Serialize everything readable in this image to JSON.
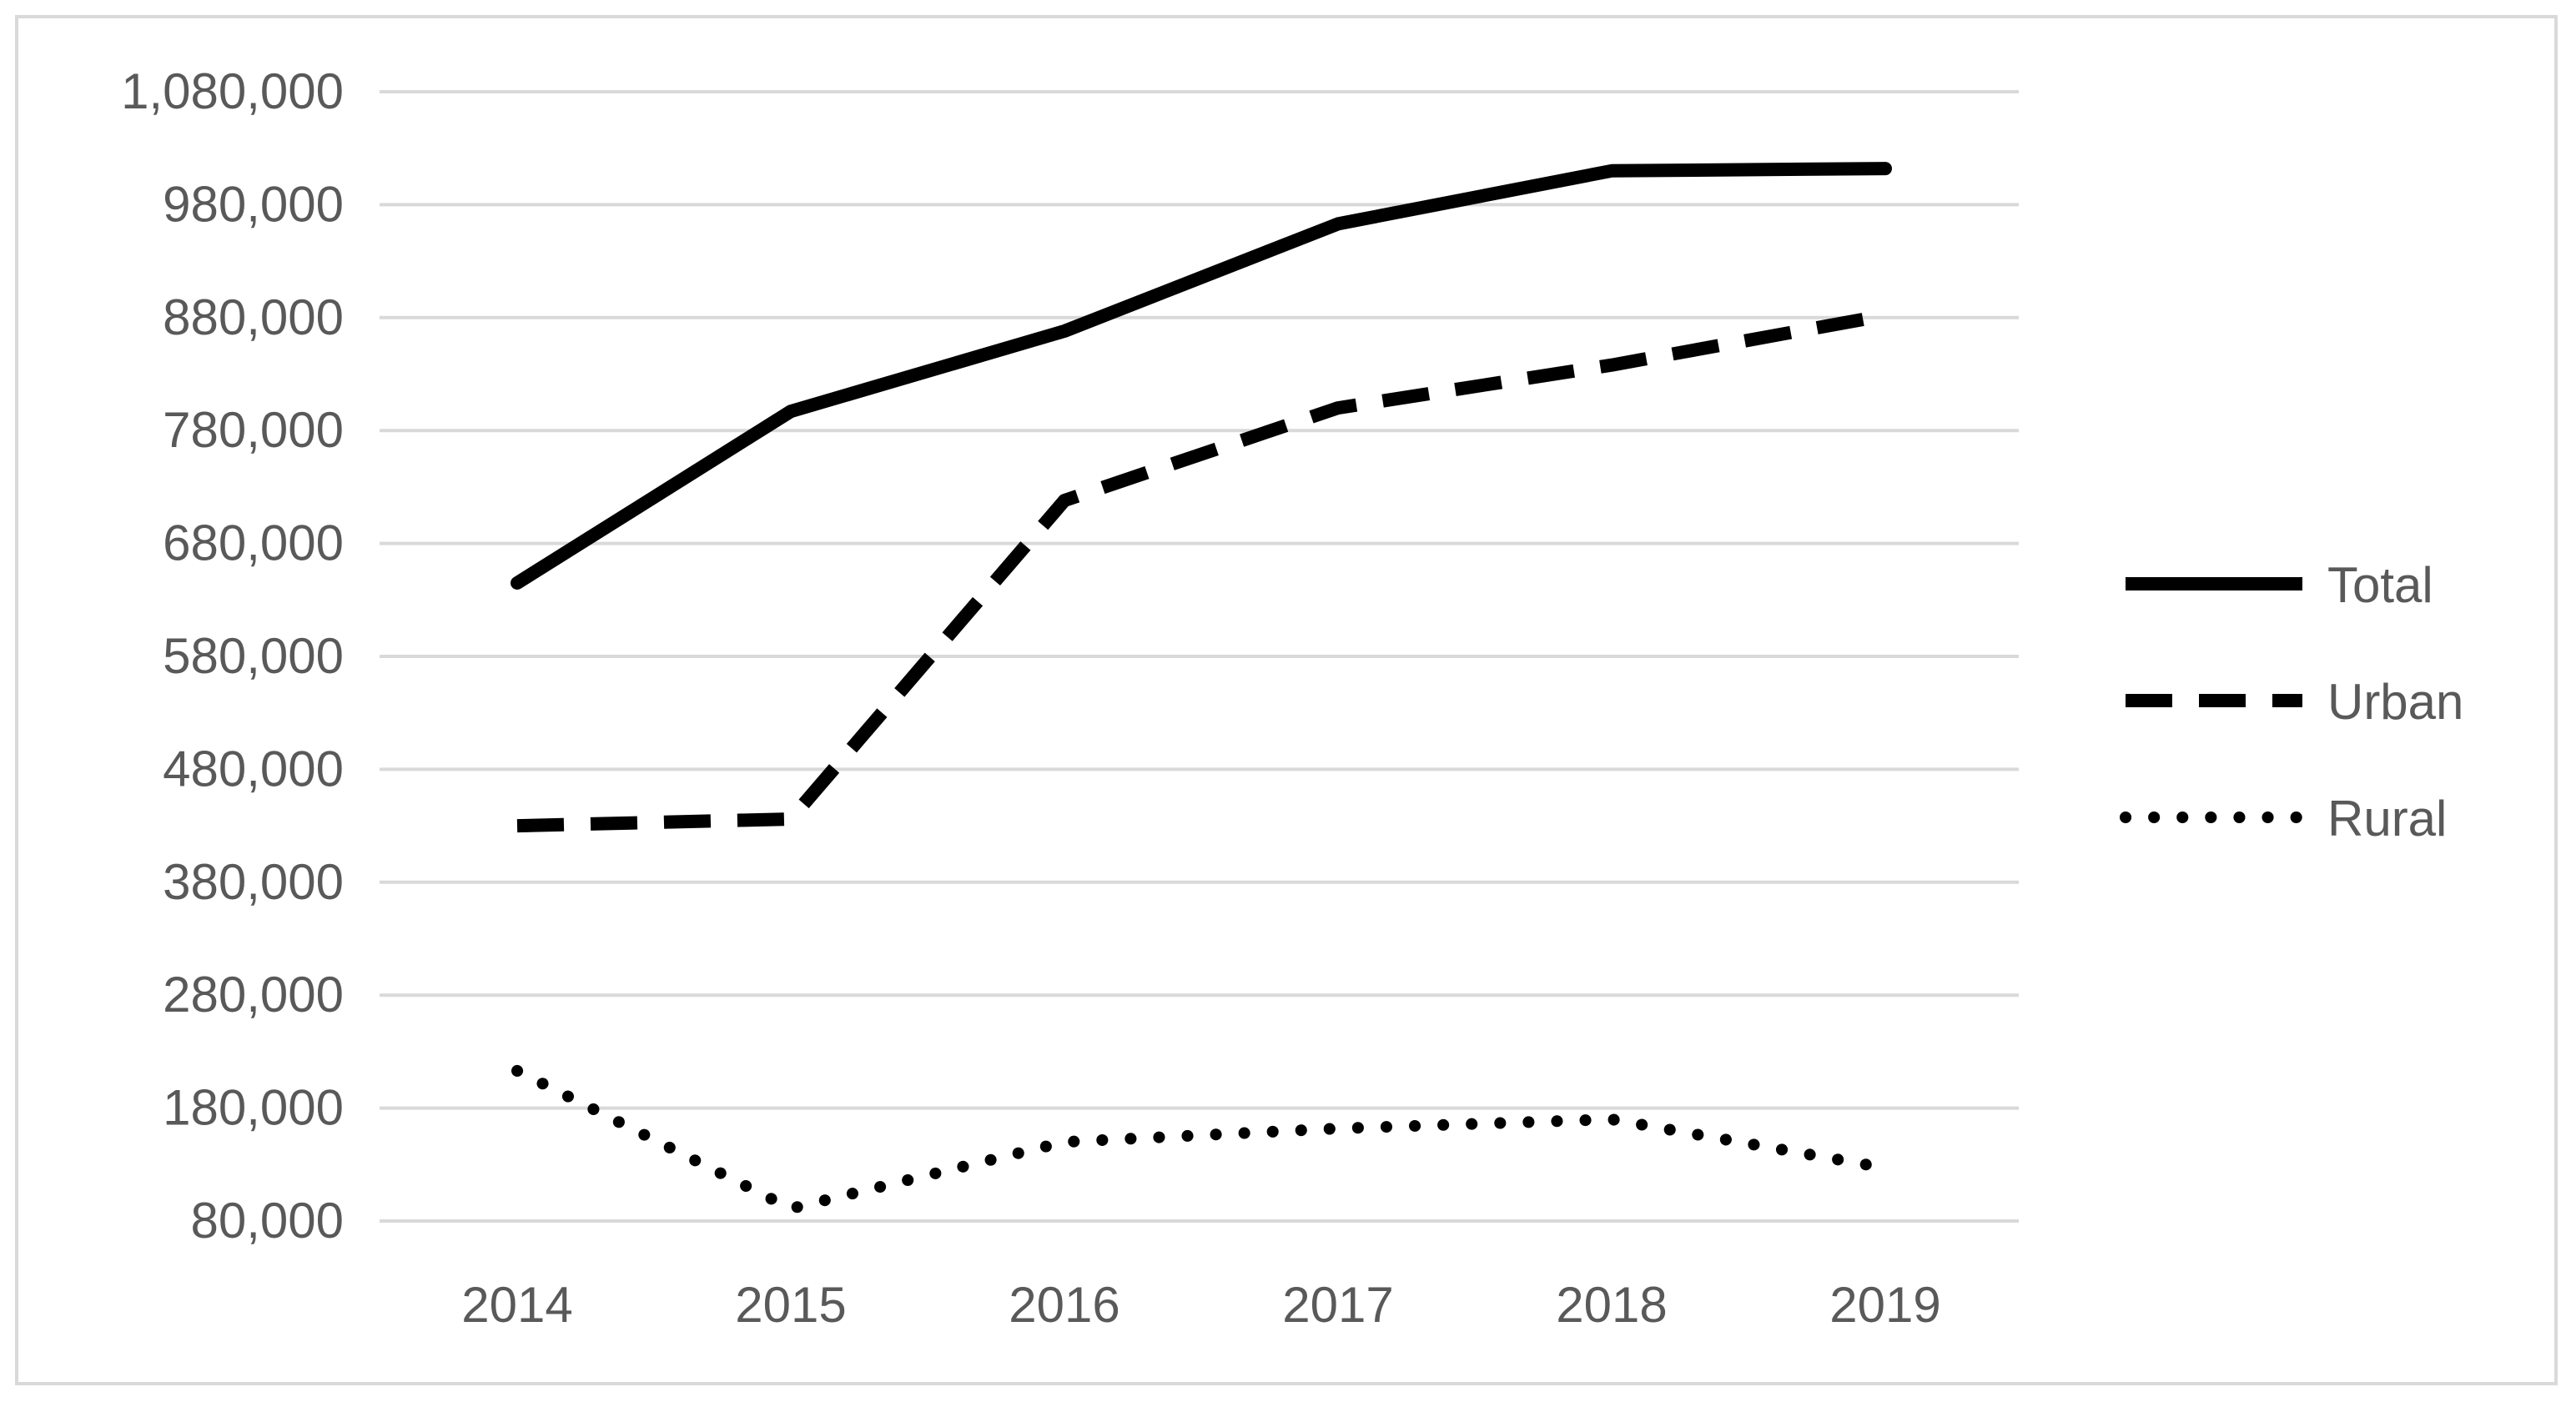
{
  "chart_data": {
    "type": "line",
    "title": "",
    "xlabel": "",
    "ylabel": "",
    "categories": [
      "2014",
      "2015",
      "2016",
      "2017",
      "2018",
      "2019"
    ],
    "ylim": [
      80000,
      1080000
    ],
    "yticks": [
      80000,
      180000,
      280000,
      380000,
      480000,
      580000,
      680000,
      780000,
      880000,
      980000,
      1080000
    ],
    "ytick_labels": [
      "80,000",
      "180,000",
      "280,000",
      "380,000",
      "480,000",
      "580,000",
      "680,000",
      "780,000",
      "880,000",
      "980,000",
      "1,080,000"
    ],
    "grid": true,
    "legend_position": "right",
    "series": [
      {
        "name": "Total",
        "style": "solid",
        "values": [
          645000,
          797000,
          868000,
          963000,
          1010000,
          1012000
        ]
      },
      {
        "name": "Urban",
        "style": "dashed",
        "values": [
          430000,
          436000,
          718000,
          800000,
          838000,
          882000
        ]
      },
      {
        "name": "Rural",
        "style": "dotted",
        "values": [
          213000,
          91000,
          150000,
          162000,
          170000,
          127000
        ]
      }
    ],
    "colors": {
      "line": "#000000",
      "grid": "#d9d9d9",
      "text": "#595959",
      "frame": "#d9d9d9"
    }
  }
}
